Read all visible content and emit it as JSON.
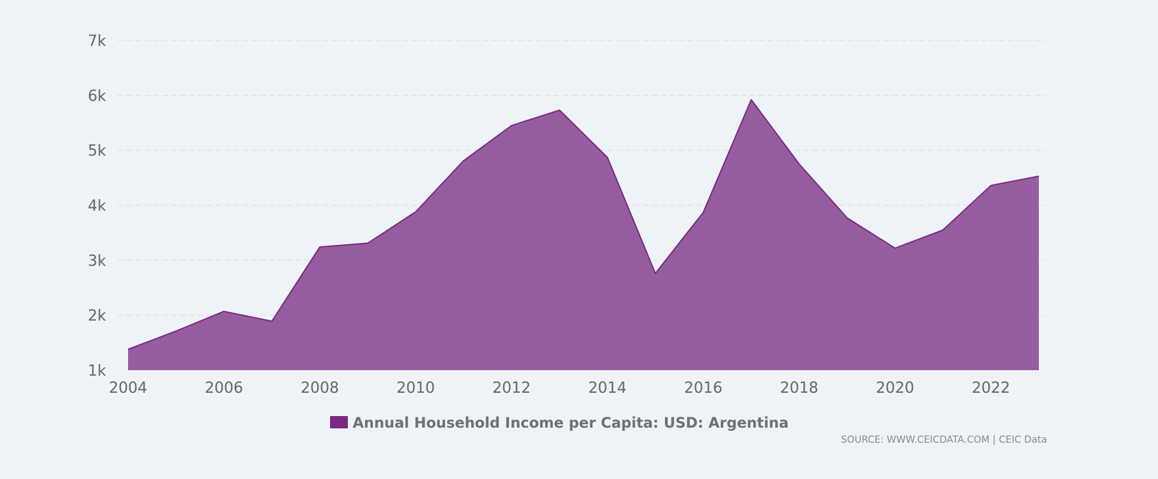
{
  "chart_data": {
    "type": "area",
    "title": "",
    "xlabel": "",
    "ylabel": "",
    "x": [
      2004,
      2005,
      2006,
      2007,
      2008,
      2009,
      2010,
      2011,
      2012,
      2013,
      2014,
      2015,
      2016,
      2017,
      2018,
      2019,
      2020,
      2021,
      2022,
      2023
    ],
    "series": [
      {
        "name": "Annual Household Income per Capita: USD: Argentina",
        "values": [
          1380,
          1710,
          2070,
          1890,
          3240,
          3310,
          3880,
          4810,
          5450,
          5730,
          4870,
          2760,
          3870,
          5920,
          4750,
          3770,
          3220,
          3550,
          4360,
          4530
        ],
        "color": "#7b2a84"
      }
    ],
    "ylim": [
      1000,
      7000
    ],
    "y_ticks": [
      1000,
      2000,
      3000,
      4000,
      5000,
      6000,
      7000
    ],
    "y_tick_labels": [
      "1k",
      "2k",
      "3k",
      "4k",
      "5k",
      "6k",
      "7k"
    ],
    "x_ticks": [
      2004,
      2006,
      2008,
      2010,
      2012,
      2014,
      2016,
      2018,
      2020,
      2022
    ],
    "x_tick_labels": [
      "2004",
      "2006",
      "2008",
      "2010",
      "2012",
      "2014",
      "2016",
      "2018",
      "2020",
      "2022"
    ],
    "grid": true,
    "legend": "bottom-center"
  },
  "source": {
    "label": "SOURCE: WWW.CEICDATA.COM | CEIC Data"
  },
  "colors": {
    "background": "#eef3f7",
    "series_line": "#7b2a84",
    "series_fill": "#965ea0"
  }
}
